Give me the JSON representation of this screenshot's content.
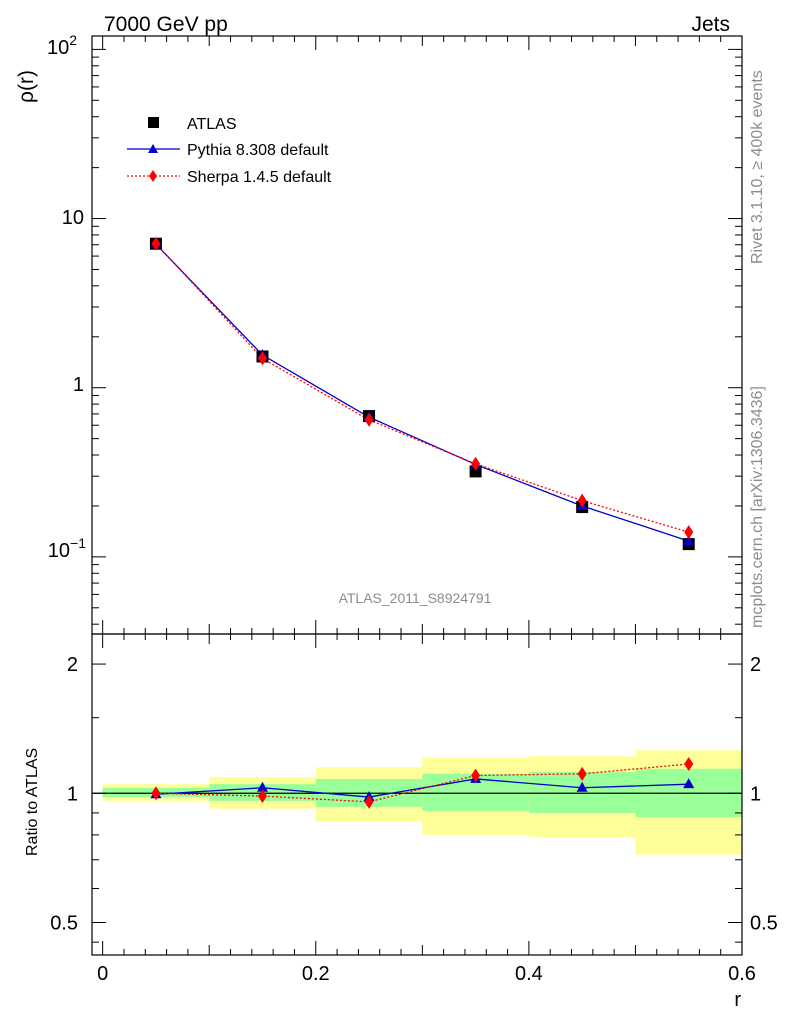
{
  "chart_data": [
    {
      "type": "line",
      "panel": "main",
      "title_left": "7000 GeV pp",
      "title_right": "Jets",
      "ylabel": "ρ(r)",
      "yscale": "log",
      "ylim": [
        0.035,
        120
      ],
      "xlim": [
        -0.01,
        0.6
      ],
      "y_ticks": [
        {
          "value": 100,
          "base": "10",
          "exp": "2"
        },
        {
          "value": 10,
          "label": "10"
        },
        {
          "value": 1,
          "label": "1"
        },
        {
          "value": 0.1,
          "base": "10",
          "exp": "−1"
        }
      ],
      "watermark": "ATLAS_2011_S8924791",
      "side_label_top": "Rivet 3.1.10, ≥ 400k events",
      "side_label_bottom": "mcplots.cern.ch [arXiv:1306.3436]",
      "x": [
        0.05,
        0.15,
        0.25,
        0.35,
        0.45,
        0.55
      ],
      "series": [
        {
          "name": "ATLAS",
          "marker": "square",
          "color": "#000000",
          "values": [
            7.1,
            1.53,
            0.68,
            0.32,
            0.197,
            0.119
          ]
        },
        {
          "name": "Pythia 8.308 default",
          "marker": "triangle",
          "color": "#0000cc",
          "line": "solid",
          "values": [
            7.05,
            1.56,
            0.67,
            0.352,
            0.2,
            0.124
          ]
        },
        {
          "name": "Sherpa 1.4.5 default",
          "marker": "diamond",
          "color": "#ff0000",
          "line": "dotted",
          "values": [
            7.1,
            1.49,
            0.645,
            0.355,
            0.215,
            0.14
          ]
        }
      ]
    },
    {
      "type": "line",
      "panel": "ratio",
      "ylabel": "Ratio to ATLAS",
      "xlabel": "r",
      "yscale": "log",
      "ylim": [
        0.42,
        2.35
      ],
      "xlim": [
        -0.01,
        0.6
      ],
      "x_ticks": [
        "0",
        "0.2",
        "0.4",
        "0.6"
      ],
      "x_tick_values": [
        0,
        0.2,
        0.4,
        0.6
      ],
      "y_ticks": [
        "0.5",
        "1",
        "2"
      ],
      "y_tick_values": [
        0.5,
        1,
        2
      ],
      "bins": [
        [
          0,
          0.1
        ],
        [
          0.1,
          0.2
        ],
        [
          0.2,
          0.3
        ],
        [
          0.3,
          0.4
        ],
        [
          0.4,
          0.5
        ],
        [
          0.5,
          0.6
        ]
      ],
      "band_yellow": [
        [
          0.96,
          1.05
        ],
        [
          0.92,
          1.09
        ],
        [
          0.86,
          1.15
        ],
        [
          0.8,
          1.21
        ],
        [
          0.79,
          1.22
        ],
        [
          0.72,
          1.26
        ]
      ],
      "band_green": [
        [
          0.98,
          1.03
        ],
        [
          0.96,
          1.05
        ],
        [
          0.93,
          1.08
        ],
        [
          0.91,
          1.11
        ],
        [
          0.9,
          1.12
        ],
        [
          0.88,
          1.14
        ]
      ],
      "x": [
        0.05,
        0.15,
        0.25,
        0.35,
        0.45,
        0.55
      ],
      "series": [
        {
          "name": "Pythia 8.308 default",
          "color": "#0000cc",
          "values": [
            0.995,
            1.03,
            0.98,
            1.08,
            1.03,
            1.05
          ]
        },
        {
          "name": "Sherpa 1.4.5 default",
          "color": "#ff0000",
          "values": [
            1.0,
            0.985,
            0.955,
            1.1,
            1.11,
            1.17
          ]
        }
      ]
    }
  ],
  "colors": {
    "band_yellow": "#ffff99",
    "band_green": "#99ff99",
    "pythia": "#0000cc",
    "sherpa": "#ff0000",
    "data": "#000000"
  }
}
